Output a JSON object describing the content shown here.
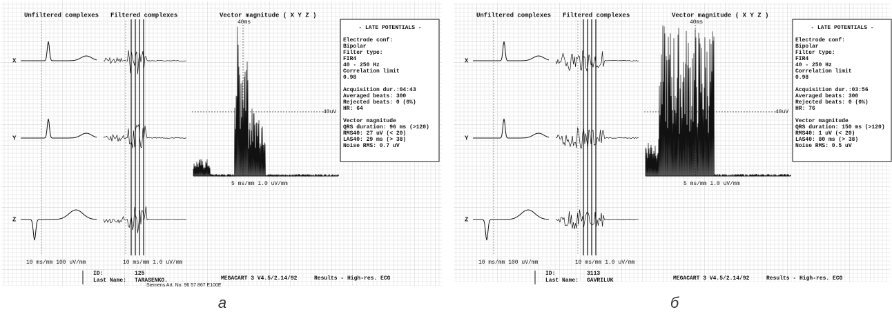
{
  "panels": [
    {
      "label": "а",
      "headers": [
        "Unfiltered complexes",
        "Filtered complexes",
        "Vector magnitude ( X Y Z )"
      ],
      "leads": [
        "X",
        "Y",
        "Z"
      ],
      "vm_time_mark": "40ms",
      "vm_amp_mark": "40uV",
      "vm_scale": "5 ms/mm  1.0 uV/mm",
      "box": {
        "title": "- LATE POTENTIALS -",
        "sections": [
          [
            "Electrode conf:",
            "    Bipolar",
            "Filter type:",
            "    FIR4",
            "    40 - 250 Hz",
            "Correlation limit",
            "    0.98"
          ],
          [
            "Acquisition dur.:04:43",
            "Averaged beats: 300",
            "Rejected beats:   0 (0%)",
            "HR:              64"
          ],
          [
            "       Vector magnitude",
            "QRS duration:  96 ms (>120)",
            "RMS40:         27 uV (< 20)",
            "LAS40:         29 ms (> 38)",
            "Noise RMS:    0.7 uV"
          ]
        ]
      },
      "scale_left": "10 ms/mm  100 uV/mm",
      "scale_mid": "10 ms/mm  1.0 uV/mm",
      "footer": {
        "id_label": "ID:",
        "id": "125",
        "name_label": "Last Name:",
        "name": "TARASENKO.",
        "software": "MEGACART 3 V4.5/2.14/92",
        "results": "Results - High-res. ECG",
        "art_no": "Siemens Art. No. 96 57 867 E100E"
      }
    },
    {
      "label": "б",
      "headers": [
        "Unfiltered complexes",
        "Filtered complexes",
        "Vector magnitude ( X Y Z )"
      ],
      "leads": [
        "X",
        "Y",
        "Z"
      ],
      "vm_time_mark": "40ms",
      "vm_amp_mark": "40uV",
      "vm_scale": "5 ms/mm  1.0 uV/mm",
      "box": {
        "title": "- LATE POTENTIALS -",
        "sections": [
          [
            "Electrode conf:",
            "    Bipolar",
            "Filter type:",
            "    FIR4",
            "    40 - 250 Hz",
            "Correlation limit",
            "    0.98"
          ],
          [
            "Acquisition dur.:03:56",
            "Averaged beats: 300",
            "Rejected beats:   0 (0%)",
            "HR:              76"
          ],
          [
            "       Vector magnitude",
            "QRS duration: 150 ms (>120)",
            "RMS40:          1 uV (< 20)",
            "LAS40:         80 ms (> 38)",
            "Noise RMS:    0.5 uV"
          ]
        ]
      },
      "scale_left": "10 ms/mm  100 uV/mm",
      "scale_mid": "10 ms/mm  1.0 uV/mm",
      "footer": {
        "id_label": "ID:",
        "id": "3113",
        "name_label": "Last Name:",
        "name": "GAVRILUK",
        "software": "MEGACART 3 V4.5/2.14/92",
        "results": "Results - High-res. ECG"
      }
    }
  ]
}
